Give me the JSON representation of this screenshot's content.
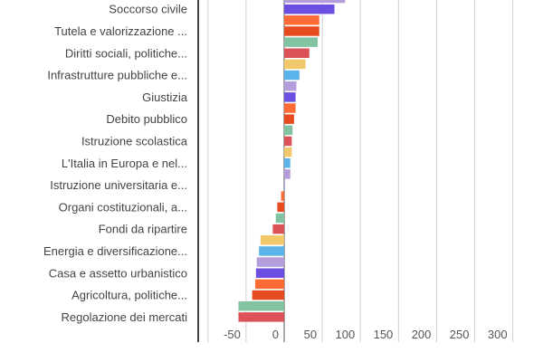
{
  "chart_data": {
    "type": "bar",
    "orientation": "horizontal",
    "categories": [
      "",
      "Soccorso civile",
      "",
      "Tutela e valorizzazione ...",
      "",
      "Diritti sociali, politiche...",
      "",
      "Infrastrutture pubbliche e...",
      "",
      "Giustizia",
      "",
      "Debito pubblico",
      "",
      "Istruzione scolastica",
      "",
      "L'Italia in Europa e nel...",
      "",
      "Istruzione universitaria e...",
      "",
      "Organi costituzionali, a...",
      "",
      "Fondi da ripartire",
      "",
      "Energia e diversificazione...",
      "",
      "Casa e assetto urbanistico",
      "",
      "Agricoltura, politiche...",
      "",
      "Regolazione dei mercati"
    ],
    "values": [
      80,
      66,
      46,
      46,
      44,
      33,
      28,
      20,
      16,
      15,
      15,
      13,
      11,
      10,
      10,
      8,
      8,
      0.5,
      -4,
      -9,
      -11,
      -15,
      -31,
      -33,
      -36,
      -37,
      -38,
      -42,
      -60,
      -60
    ],
    "colors": [
      "#b39ddb",
      "#6c4ee0",
      "#ff6b35",
      "#e64c1f",
      "#82c4a2",
      "#dc5257",
      "#f2c96a",
      "#5bb3ea"
    ],
    "x_ticks": [
      "-50",
      "0",
      "50",
      "100",
      "150",
      "200",
      "250",
      "300"
    ],
    "x_tick_values": [
      -50,
      0,
      50,
      100,
      150,
      200,
      250,
      300
    ],
    "xlim": [
      -100,
      300
    ],
    "grid": true,
    "title": "",
    "xlabel": "",
    "ylabel": ""
  }
}
